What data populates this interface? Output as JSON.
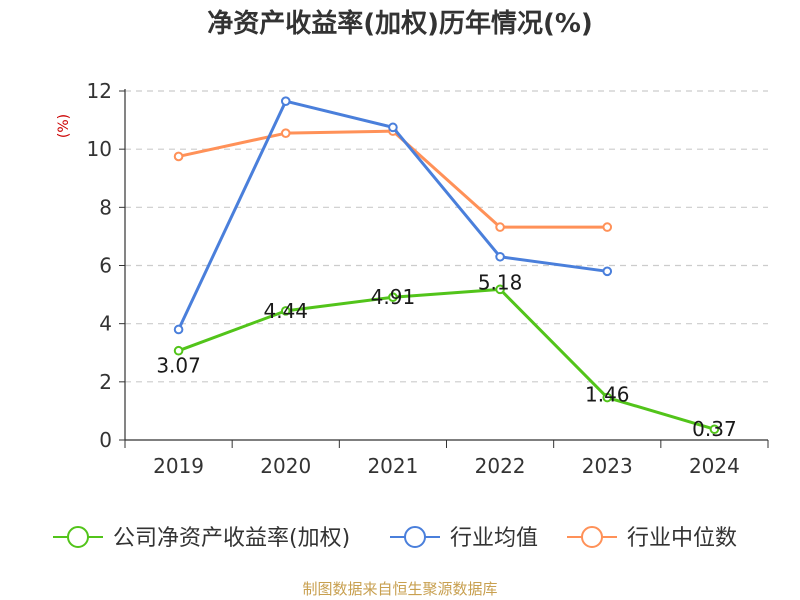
{
  "chart_data": {
    "type": "line",
    "title": "净资产收益率(加权)历年情况(%)",
    "ylabel": "(%)",
    "categories": [
      "2019",
      "2020",
      "2021",
      "2022",
      "2023",
      "2024"
    ],
    "ylim": [
      0,
      12
    ],
    "yticks": [
      0,
      2,
      4,
      6,
      8,
      10,
      12
    ],
    "grid": true,
    "legend_position": "bottom",
    "series": [
      {
        "name": "公司净资产收益率(加权)",
        "color": "#52c41a",
        "values": [
          3.07,
          4.44,
          4.91,
          5.18,
          1.46,
          0.37
        ],
        "labels": [
          "3.07",
          "4.44",
          "4.91",
          "5.18",
          "1.46",
          "0.37"
        ]
      },
      {
        "name": "行业均值",
        "color": "#4a7fdb",
        "values": [
          3.8,
          11.65,
          10.75,
          6.3,
          5.8,
          null
        ]
      },
      {
        "name": "行业中位数",
        "color": "#ff9158",
        "values": [
          9.75,
          10.55,
          10.62,
          7.32,
          7.32,
          null
        ]
      }
    ]
  },
  "source": "制图数据来自恒生聚源数据库",
  "colors": {
    "unit_label": "#cc0000",
    "source": "#c8a050",
    "grid": "#cccccc",
    "axis": "#333333"
  }
}
